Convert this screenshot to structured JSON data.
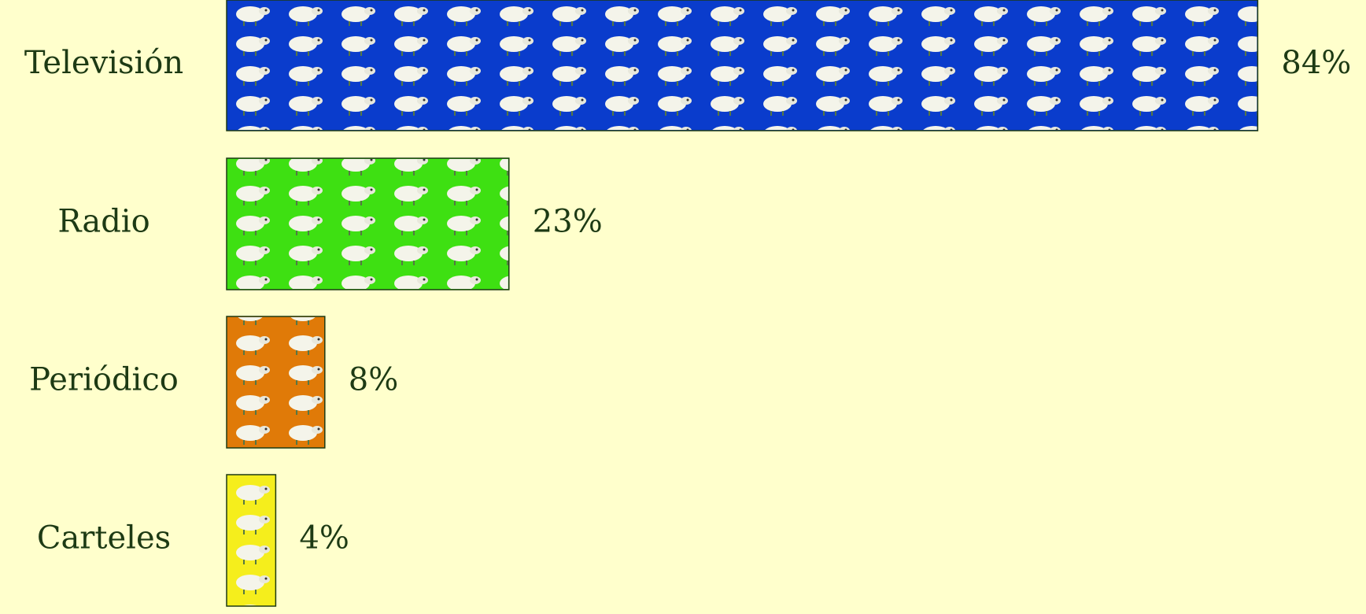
{
  "chart_data": {
    "type": "bar",
    "orientation": "horizontal",
    "categories": [
      "Televisión",
      "Radio",
      "Periódico",
      "Carteles"
    ],
    "values": [
      84,
      23,
      8,
      4
    ],
    "value_labels": [
      "84%",
      "23%",
      "8%",
      "4%"
    ],
    "colors": [
      "#0a3ccc",
      "#3ee012",
      "#e07a08",
      "#f5ee1c"
    ]
  }
}
